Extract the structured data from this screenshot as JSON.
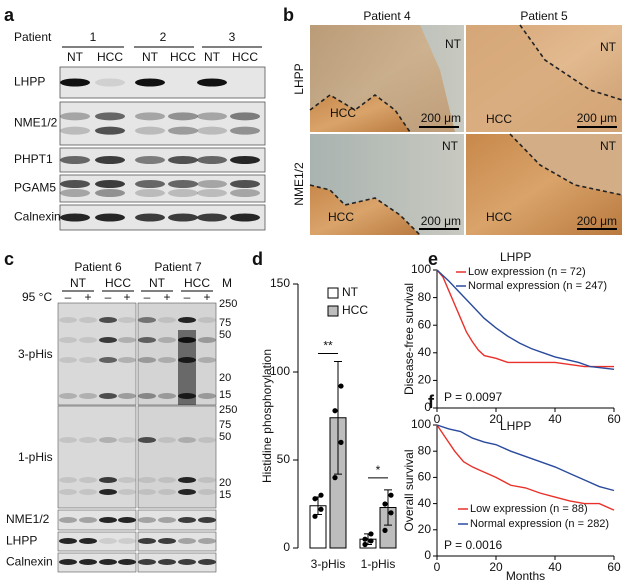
{
  "figure": {
    "a": {
      "label": "a",
      "patient_header": "Patient",
      "patients": [
        "1",
        "2",
        "3"
      ],
      "lanes": [
        "NT",
        "HCC",
        "NT",
        "HCC",
        "NT",
        "HCC"
      ],
      "rows": [
        "LHPP",
        "NME1/2",
        "PHPT1",
        "PGAM5",
        "Calnexin"
      ]
    },
    "b": {
      "label": "b",
      "columns": [
        "Patient 4",
        "Patient 5"
      ],
      "rows": [
        "LHPP",
        "NME1/2"
      ],
      "images": [
        {
          "nt": "NT",
          "hcc": "HCC",
          "scale": "200 μm"
        },
        {
          "nt": "NT",
          "hcc": "HCC",
          "scale": "200 μm"
        },
        {
          "nt": "NT",
          "hcc": "HCC",
          "scale": "200 μm"
        },
        {
          "nt": "NT",
          "hcc": "HCC",
          "scale": "200 μm"
        }
      ]
    },
    "c": {
      "label": "c",
      "patients": [
        "Patient 6",
        "Patient 7"
      ],
      "groups": [
        "NT",
        "HCC",
        "NT",
        "HCC"
      ],
      "temperature": "95 °C",
      "treatments": [
        "–",
        "+",
        "–",
        "+",
        "–",
        "+",
        "–",
        "+"
      ],
      "marker_header": "M",
      "markers_upper": [
        "250",
        "75",
        "50",
        "20",
        "15"
      ],
      "markers_lower": [
        "250",
        "75",
        "50",
        "20",
        "15"
      ],
      "rows": [
        "3-pHis",
        "1-pHis",
        "NME1/2",
        "LHPP",
        "Calnexin"
      ]
    }
  },
  "chart_data": [
    {
      "type": "bar",
      "panel_label": "d",
      "ylabel": "Histidine phosphorylation",
      "categories": [
        "3-pHis",
        "1-pHis"
      ],
      "series": [
        {
          "name": "NT",
          "color": "#ffffff",
          "values": [
            24,
            5
          ],
          "errors": [
            5,
            3
          ],
          "points": [
            [
              18,
              22,
              28,
              30
            ],
            [
              2,
              4,
              5,
              8
            ]
          ]
        },
        {
          "name": "HCC",
          "color": "#bdbdbd",
          "values": [
            74,
            23
          ],
          "errors": [
            32,
            10
          ],
          "points": [
            [
              40,
              60,
              78,
              92
            ],
            [
              10,
              20,
              25,
              30
            ]
          ]
        }
      ],
      "ylim": [
        0,
        150
      ],
      "yticks": [
        0,
        50,
        100,
        150
      ],
      "annotations": [
        "**",
        "*"
      ]
    },
    {
      "type": "line",
      "panel_label": "e",
      "title": "LHPP",
      "ylabel": "Disease-free survival",
      "series": [
        {
          "name": "Low expression (n = 72)",
          "color": "#e8312a",
          "x": [
            0,
            2,
            4,
            6,
            8,
            10,
            12,
            14,
            16,
            20,
            24,
            30,
            40,
            50,
            60
          ],
          "values": [
            100,
            95,
            85,
            75,
            65,
            55,
            48,
            42,
            38,
            36,
            33,
            33,
            33,
            30,
            30
          ]
        },
        {
          "name": "Normal expression (n = 247)",
          "color": "#2a4a9c",
          "x": [
            0,
            4,
            8,
            12,
            16,
            20,
            24,
            28,
            32,
            36,
            40,
            44,
            48,
            52,
            56,
            60
          ],
          "values": [
            100,
            92,
            83,
            74,
            65,
            58,
            52,
            47,
            43,
            40,
            37,
            35,
            33,
            30,
            29,
            28
          ]
        }
      ],
      "xlim": [
        0,
        60
      ],
      "xticks": [
        0,
        20,
        40,
        60
      ],
      "ylim": [
        0,
        100
      ],
      "yticks": [
        0,
        20,
        40,
        60,
        80,
        100
      ],
      "annotation": "P = 0.0097"
    },
    {
      "type": "line",
      "panel_label": "f",
      "title": "LHPP",
      "ylabel": "Overall survival",
      "xlabel": "Months",
      "series": [
        {
          "name": "Low expression (n = 88)",
          "color": "#e8312a",
          "x": [
            0,
            3,
            6,
            9,
            12,
            15,
            20,
            25,
            30,
            35,
            40,
            45,
            50,
            55,
            60
          ],
          "values": [
            100,
            90,
            80,
            72,
            68,
            65,
            60,
            54,
            52,
            48,
            45,
            42,
            40,
            40,
            35
          ]
        },
        {
          "name": "Normal expression (n = 282)",
          "color": "#2a4a9c",
          "x": [
            0,
            4,
            8,
            12,
            16,
            20,
            25,
            30,
            35,
            40,
            45,
            50,
            55,
            60
          ],
          "values": [
            100,
            97,
            95,
            90,
            87,
            85,
            80,
            76,
            72,
            68,
            63,
            58,
            53,
            50
          ]
        }
      ],
      "xlim": [
        0,
        60
      ],
      "xticks": [
        0,
        20,
        40,
        60
      ],
      "ylim": [
        0,
        100
      ],
      "yticks": [
        0,
        20,
        40,
        60,
        80,
        100
      ],
      "annotation": "P = 0.0016"
    }
  ]
}
